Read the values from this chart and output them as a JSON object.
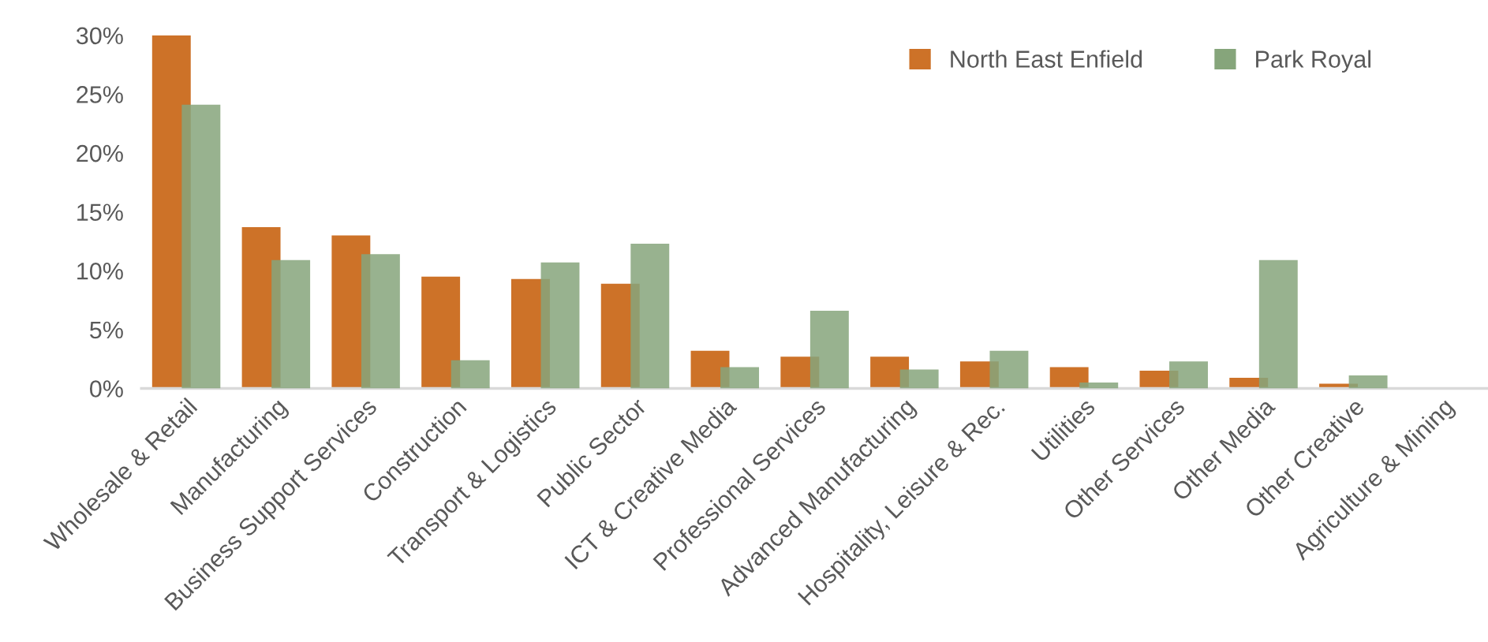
{
  "chart_data": {
    "type": "bar",
    "categories": [
      "Wholesale & Retail",
      "Manufacturing",
      "Business Support Services",
      "Construction",
      "Transport & Logistics",
      "Public Sector",
      "ICT & Creative Media",
      "Professional Services",
      "Advanced Manufacturing",
      "Hospitality, Leisure & Rec.",
      "Utilities",
      "Other Services",
      "Other Media",
      "Other Creative",
      "Agriculture & Mining"
    ],
    "series": [
      {
        "name": "North East Enfield",
        "color": "#cd7228",
        "values": [
          30,
          13.7,
          13.0,
          9.5,
          9.3,
          8.9,
          3.2,
          2.7,
          2.7,
          2.3,
          1.8,
          1.5,
          0.9,
          0.4,
          0
        ]
      },
      {
        "name": "Park Royal",
        "color": "#86a57b",
        "values": [
          24.1,
          10.9,
          11.4,
          2.4,
          10.7,
          12.3,
          1.8,
          6.6,
          1.6,
          3.2,
          0.5,
          2.3,
          10.9,
          1.1,
          0
        ]
      }
    ],
    "ylim": [
      0,
      30
    ],
    "yticks": [
      {
        "value": 0,
        "label": "0%"
      },
      {
        "value": 5,
        "label": "5%"
      },
      {
        "value": 10,
        "label": "10%"
      },
      {
        "value": 15,
        "label": "15%"
      },
      {
        "value": 20,
        "label": "20%"
      },
      {
        "value": 25,
        "label": "25%"
      },
      {
        "value": 30,
        "label": "30%"
      }
    ],
    "grid": false,
    "legend": "top right"
  }
}
